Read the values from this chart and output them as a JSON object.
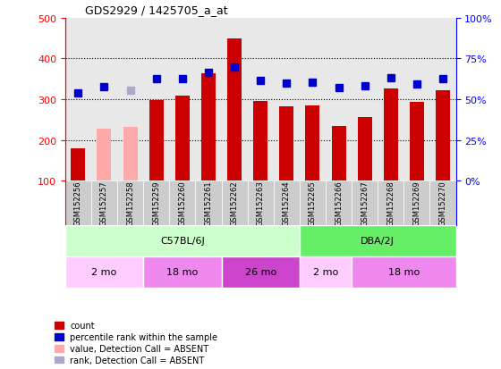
{
  "title": "GDS2929 / 1425705_a_at",
  "samples": [
    "GSM152256",
    "GSM152257",
    "GSM152258",
    "GSM152259",
    "GSM152260",
    "GSM152261",
    "GSM152262",
    "GSM152263",
    "GSM152264",
    "GSM152265",
    "GSM152266",
    "GSM152267",
    "GSM152268",
    "GSM152269",
    "GSM152270"
  ],
  "bar_values": [
    180,
    228,
    232,
    297,
    309,
    363,
    448,
    295,
    282,
    284,
    235,
    257,
    326,
    293,
    321
  ],
  "bar_absent": [
    false,
    true,
    true,
    false,
    false,
    false,
    false,
    false,
    false,
    false,
    false,
    false,
    false,
    false,
    false
  ],
  "rank_values": [
    315,
    330,
    322,
    350,
    351,
    365,
    380,
    347,
    340,
    342,
    328,
    332,
    352,
    338,
    350
  ],
  "rank_absent": [
    false,
    false,
    true,
    false,
    false,
    false,
    false,
    false,
    false,
    false,
    false,
    false,
    false,
    false,
    false
  ],
  "bar_color_present": "#cc0000",
  "bar_color_absent": "#ffaaaa",
  "rank_color_present": "#0000cc",
  "rank_color_absent": "#aaaacc",
  "ylim_left": [
    100,
    500
  ],
  "ylim_right": [
    0,
    100
  ],
  "yticks_left": [
    100,
    200,
    300,
    400,
    500
  ],
  "ytick_labels_right": [
    "0%",
    "25%",
    "50%",
    "75%",
    "100%"
  ],
  "strain_groups": [
    {
      "label": "C57BL/6J",
      "start": 0,
      "end": 9,
      "color": "#ccffcc"
    },
    {
      "label": "DBA/2J",
      "start": 9,
      "end": 15,
      "color": "#66ee66"
    }
  ],
  "age_groups": [
    {
      "label": "2 mo",
      "start": 0,
      "end": 3,
      "color": "#ffccff"
    },
    {
      "label": "18 mo",
      "start": 3,
      "end": 6,
      "color": "#ee88ee"
    },
    {
      "label": "26 mo",
      "start": 6,
      "end": 9,
      "color": "#cc44cc"
    },
    {
      "label": "2 mo",
      "start": 9,
      "end": 11,
      "color": "#ffccff"
    },
    {
      "label": "18 mo",
      "start": 11,
      "end": 15,
      "color": "#ee88ee"
    }
  ],
  "legend_items": [
    {
      "label": "count",
      "color": "#cc0000"
    },
    {
      "label": "percentile rank within the sample",
      "color": "#0000cc"
    },
    {
      "label": "value, Detection Call = ABSENT",
      "color": "#ffaaaa"
    },
    {
      "label": "rank, Detection Call = ABSENT",
      "color": "#aaaacc"
    }
  ],
  "plot_bg": "#e8e8e8",
  "bar_width": 0.55,
  "rank_marker_size": 6,
  "tick_label_bg": "#d0d0d0"
}
